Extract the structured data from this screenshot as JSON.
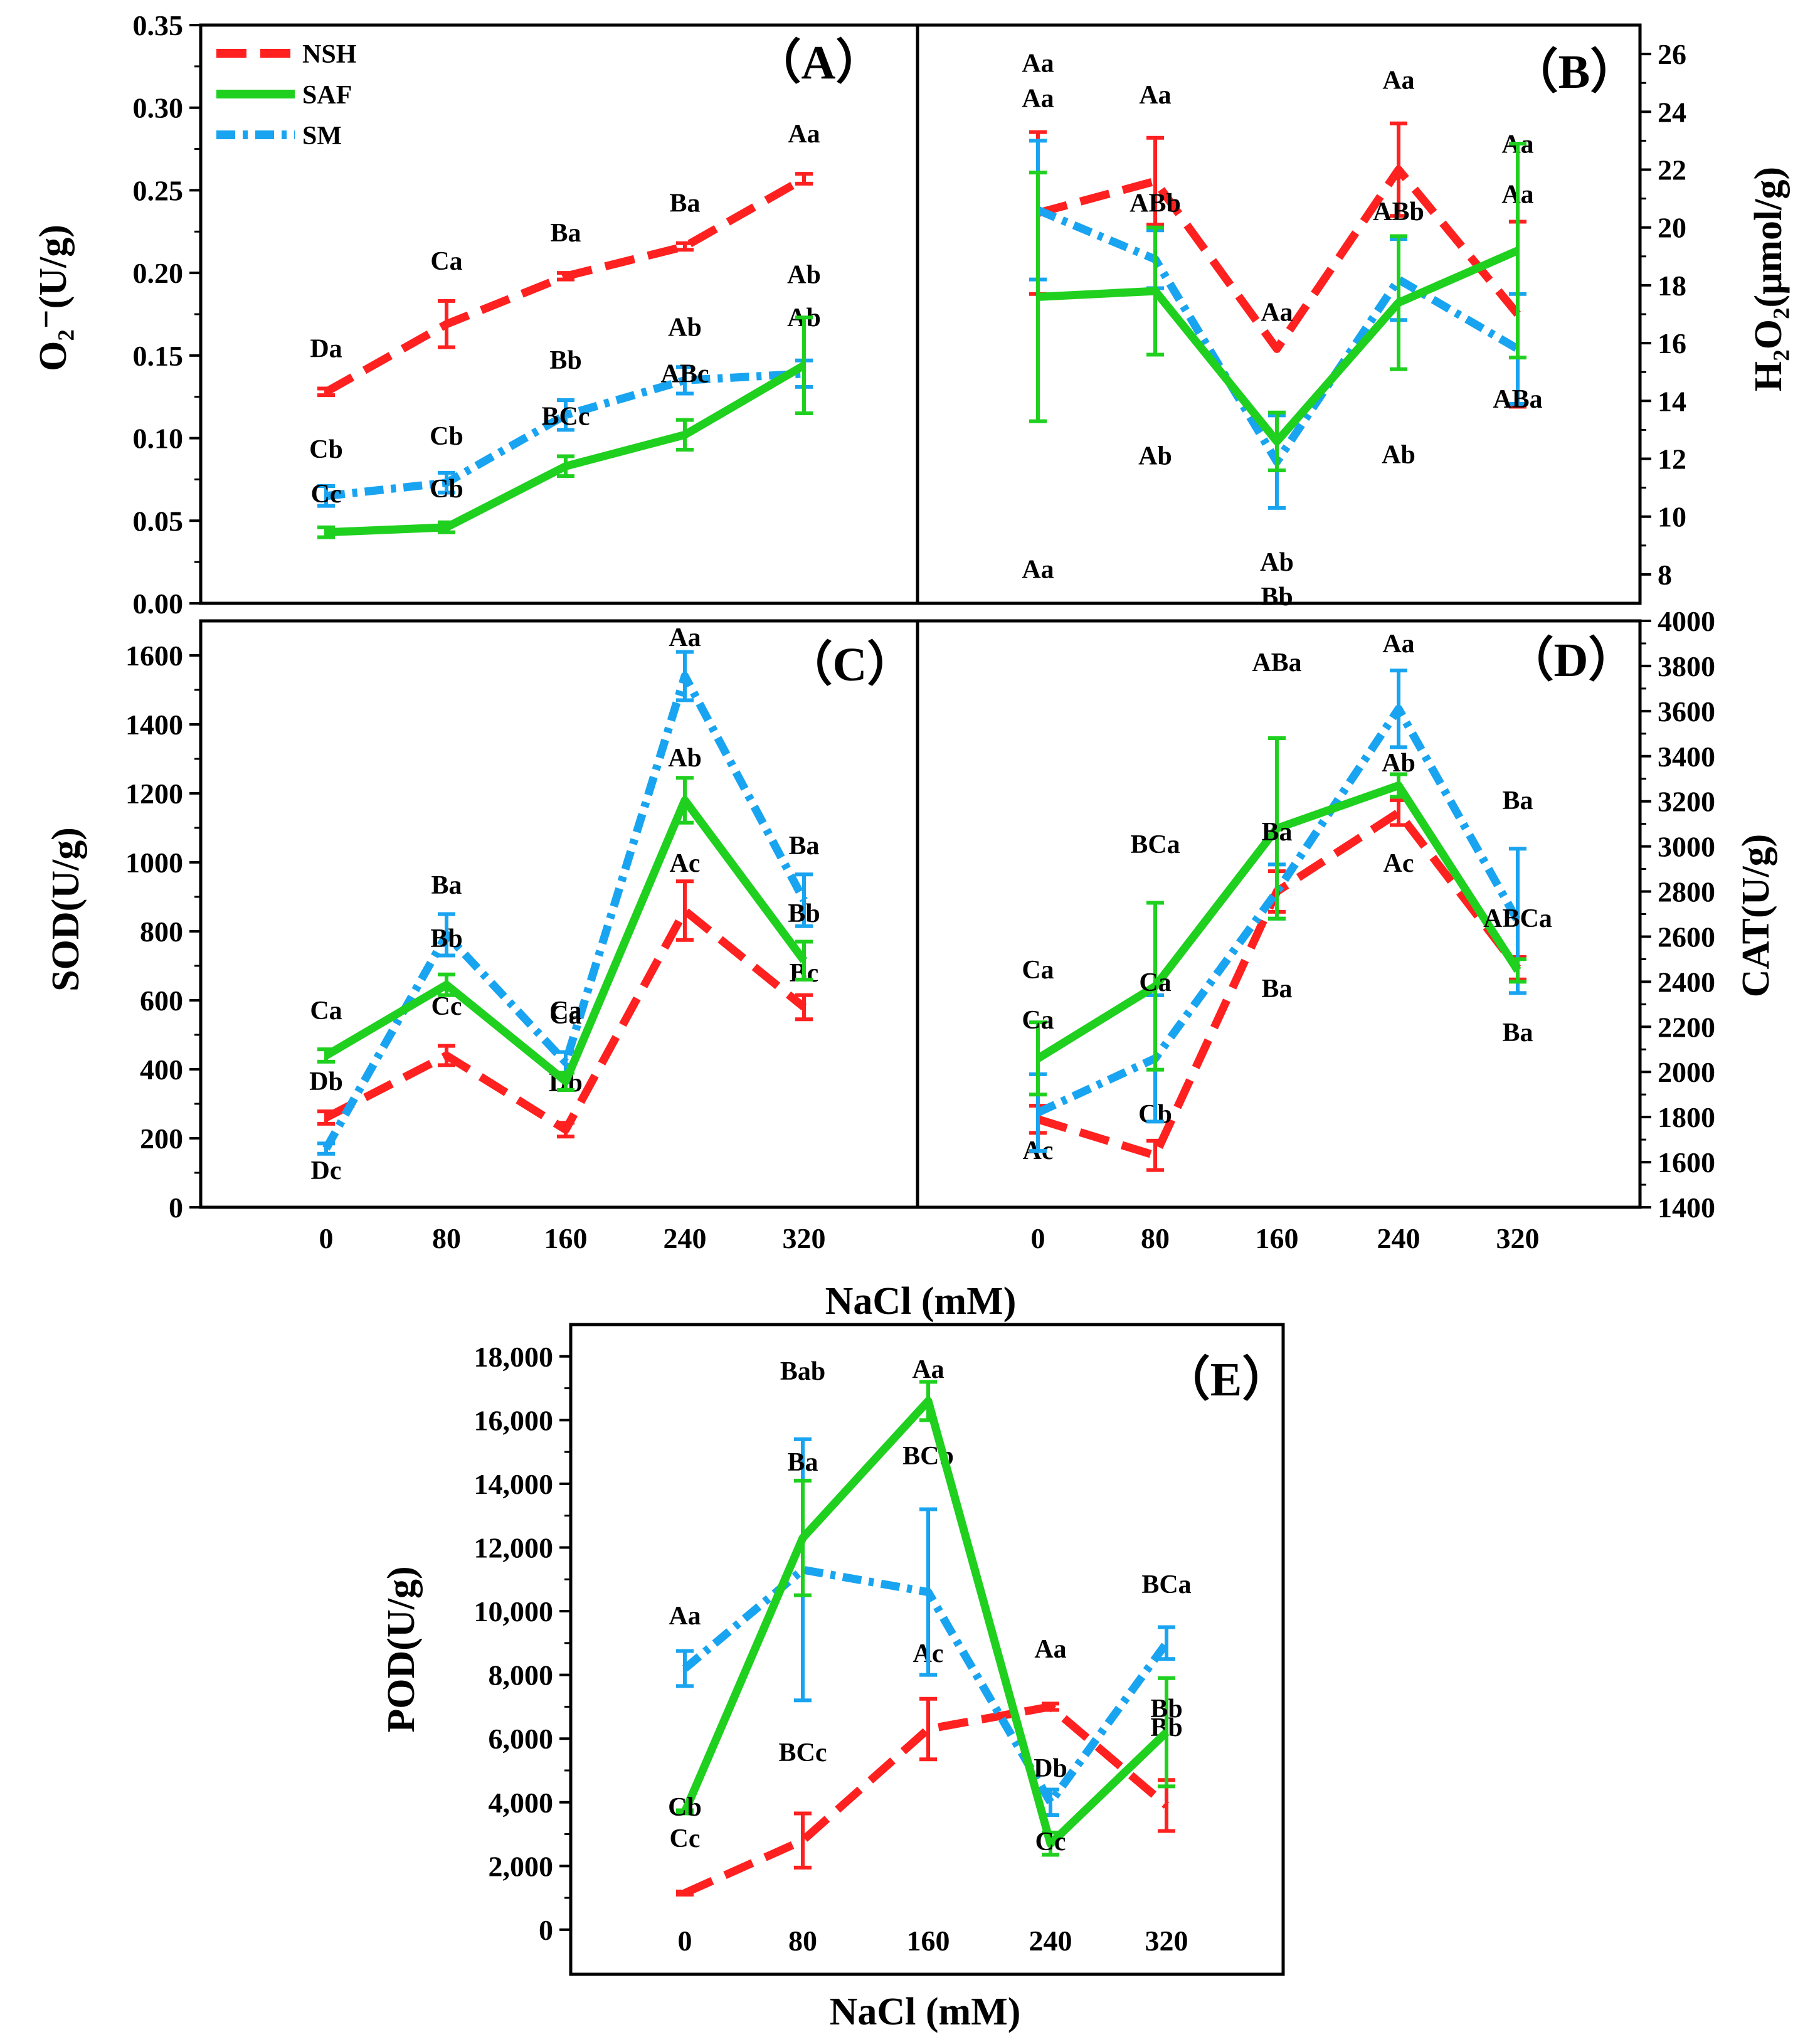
{
  "figure": {
    "x_label": "NaCl (mM)",
    "categories": [
      "0",
      "80",
      "160",
      "240",
      "320"
    ]
  },
  "legend": [
    {
      "name": "NSH",
      "color": "#ff2020",
      "dash": "dash"
    },
    {
      "name": "SAF",
      "color": "#1fd01f",
      "dash": "solid"
    },
    {
      "name": "SM",
      "color": "#18a4f0",
      "dash": "dashdot"
    }
  ],
  "chart_data": [
    {
      "id": "A",
      "type": "line",
      "tag": "（A）",
      "title": "",
      "xlabel": "NaCl (mM)",
      "ylabel": "O₂⁻(U/g)",
      "ylim": [
        0,
        0.35
      ],
      "yticks": [
        "0.00",
        "0.05",
        "0.10",
        "0.15",
        "0.20",
        "0.25",
        "0.30",
        "0.35"
      ],
      "categories": [
        "0",
        "80",
        "160",
        "240",
        "320"
      ],
      "series": [
        {
          "name": "NSH",
          "values": [
            0.128,
            0.169,
            0.198,
            0.216,
            0.257
          ],
          "errors": [
            0.002,
            0.014,
            0.002,
            0.002,
            0.003
          ],
          "labels": [
            "Da",
            "Ca",
            "Ba",
            "Ba",
            "Aa"
          ]
        },
        {
          "name": "SAF",
          "values": [
            0.043,
            0.046,
            0.083,
            0.102,
            0.144
          ],
          "errors": [
            0.003,
            0.003,
            0.006,
            0.009,
            0.029
          ],
          "labels": [
            "Cc",
            "Cb",
            "BCc",
            "ABc",
            "Ab"
          ]
        },
        {
          "name": "SM",
          "values": [
            0.065,
            0.073,
            0.114,
            0.135,
            0.139
          ],
          "errors": [
            0.006,
            0.006,
            0.009,
            0.008,
            0.008
          ],
          "labels": [
            "Cb",
            "Cb",
            "Bb",
            "Ab",
            "Ab"
          ]
        }
      ]
    },
    {
      "id": "B",
      "type": "line",
      "tag": "（B）",
      "title": "",
      "xlabel": "NaCl (mM)",
      "ylabel": "H₂O₂(μmol/g)",
      "ylim": [
        7,
        27
      ],
      "yticks": [
        "8",
        "10",
        "12",
        "14",
        "16",
        "18",
        "20",
        "22",
        "24",
        "26"
      ],
      "categories": [
        "0",
        "80",
        "160",
        "240",
        "320"
      ],
      "series": [
        {
          "name": "NSH",
          "values": [
            20.5,
            21.6,
            15.8,
            22.0,
            17.0
          ],
          "errors": [
            2.8,
            1.5,
            0.0,
            1.6,
            3.2
          ],
          "labels": [
            "Aa",
            "Aa",
            "Aa",
            "Aa",
            "Aa"
          ]
        },
        {
          "name": "SAF",
          "values": [
            17.6,
            17.8,
            12.6,
            17.4,
            19.2
          ],
          "errors": [
            4.3,
            2.2,
            1.0,
            2.3,
            3.7
          ],
          "labels": [
            "Aa",
            "Ab",
            "Ab",
            "Ab",
            "ABa"
          ]
        },
        {
          "name": "SM",
          "values": [
            20.6,
            18.9,
            11.9,
            18.2,
            15.8
          ],
          "errors": [
            2.4,
            1.0,
            1.6,
            1.4,
            1.9
          ],
          "labels": [
            "Aa",
            "ABb",
            "Bb",
            "ABb",
            "Aa"
          ]
        }
      ]
    },
    {
      "id": "C",
      "type": "line",
      "tag": "（C）",
      "title": "",
      "xlabel": "NaCl (mM)",
      "ylabel": "SOD(U/g)",
      "ylim": [
        0,
        1700
      ],
      "yticks": [
        "0",
        "200",
        "400",
        "600",
        "800",
        "1000",
        "1200",
        "1400",
        "1600"
      ],
      "categories": [
        "0",
        "80",
        "160",
        "240",
        "320"
      ],
      "series": [
        {
          "name": "NSH",
          "values": [
            260,
            440,
            225,
            860,
            580
          ],
          "errors": [
            18,
            28,
            20,
            85,
            35
          ],
          "labels": [
            "Db",
            "Cc",
            "Db",
            "Ac",
            "Bc"
          ]
        },
        {
          "name": "SAF",
          "values": [
            440,
            645,
            365,
            1180,
            715
          ],
          "errors": [
            18,
            30,
            25,
            65,
            55
          ],
          "labels": [
            "Ca",
            "Bb",
            "Ca",
            "Ab",
            "Bb"
          ]
        },
        {
          "name": "SM",
          "values": [
            170,
            790,
            420,
            1540,
            890
          ],
          "errors": [
            15,
            60,
            30,
            70,
            75
          ],
          "labels": [
            "Dc",
            "Ba",
            "Ca",
            "Aa",
            "Ba"
          ]
        }
      ]
    },
    {
      "id": "D",
      "type": "line",
      "tag": "（D）",
      "title": "",
      "xlabel": "NaCl (mM)",
      "ylabel": "CAT(U/g)",
      "ylim": [
        1400,
        4000
      ],
      "yticks": [
        "1400",
        "1600",
        "1800",
        "2000",
        "2200",
        "2400",
        "2600",
        "2800",
        "3000",
        "3200",
        "3400",
        "3600",
        "3800",
        "4000"
      ],
      "categories": [
        "0",
        "80",
        "160",
        "240",
        "320"
      ],
      "series": [
        {
          "name": "NSH",
          "values": [
            1790,
            1630,
            2800,
            3150,
            2460
          ],
          "errors": [
            60,
            65,
            90,
            55,
            50
          ],
          "labels": [
            "Ac",
            "Cb",
            "Ba",
            "Ac",
            "Ba"
          ]
        },
        {
          "name": "SAF",
          "values": [
            2060,
            2380,
            3080,
            3270,
            2450
          ],
          "errors": [
            160,
            370,
            400,
            50,
            50
          ],
          "labels": [
            "Ca",
            "Ca",
            "Ba",
            "Ab",
            "ABCa"
          ]
        },
        {
          "name": "SM",
          "values": [
            1820,
            2060,
            2800,
            3610,
            2670
          ],
          "errors": [
            170,
            280,
            120,
            170,
            320
          ],
          "labels": [
            "Ca",
            "BCa",
            "ABa",
            "Aa",
            "Ba"
          ]
        }
      ]
    },
    {
      "id": "E",
      "type": "line",
      "tag": "（E）",
      "title": "",
      "xlabel": "NaCl (mM)",
      "ylabel": "POD(U/g)",
      "ylim": [
        -1400,
        19000
      ],
      "yticks": [
        "0",
        "2,000",
        "4,000",
        "6,000",
        "8,000",
        "10,000",
        "12,000",
        "14,000",
        "16,000",
        "18,000"
      ],
      "categories": [
        "0",
        "80",
        "160",
        "240",
        "320"
      ],
      "series": [
        {
          "name": "NSH",
          "values": [
            1150,
            2800,
            6300,
            7000,
            3900
          ],
          "errors": [
            50,
            850,
            950,
            100,
            800
          ],
          "labels": [
            "Cc",
            "BCc",
            "Ac",
            "Aa",
            "Bb"
          ]
        },
        {
          "name": "SAF",
          "values": [
            3700,
            12300,
            16600,
            2700,
            6200
          ],
          "errors": [
            50,
            1800,
            600,
            350,
            1700
          ],
          "labels": [
            "Cb",
            "Ba",
            "Aa",
            "Cc",
            "Bb"
          ]
        },
        {
          "name": "SM",
          "values": [
            8200,
            11300,
            10600,
            4000,
            9000
          ],
          "errors": [
            550,
            4100,
            2600,
            400,
            500
          ],
          "labels": [
            "Aa",
            "Bab",
            "BCb",
            "Db",
            "BCa"
          ]
        }
      ]
    }
  ]
}
